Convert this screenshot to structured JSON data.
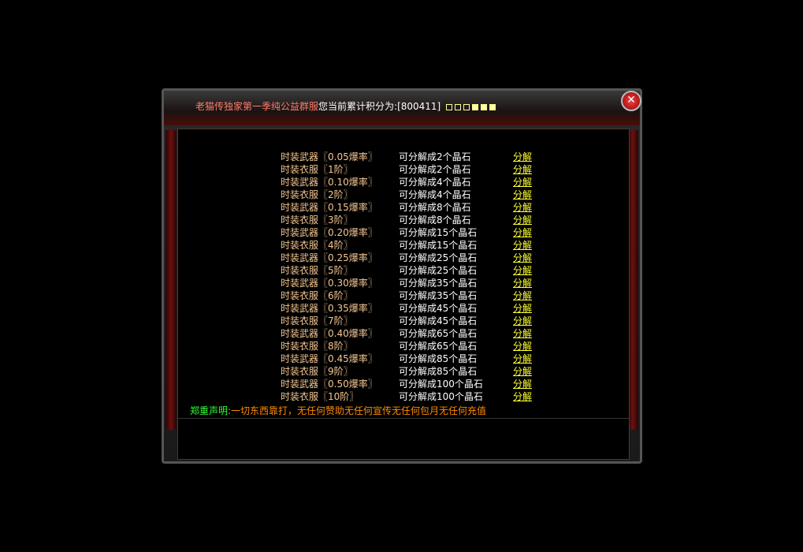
{
  "title": {
    "server_name": "老猫传独家第一季纯公益群服",
    "points_label": "您当前累计积分为:",
    "points_value": "[800411]",
    "squares": [
      false,
      false,
      false,
      true,
      true,
      true
    ]
  },
  "close_label": "✕",
  "rows": [
    {
      "item": "时装武器〖0.05爆率〗",
      "result": "可分解成2个晶石",
      "action": "分解"
    },
    {
      "item": "时装衣服〖1阶〗",
      "result": "可分解成2个晶石",
      "action": "分解"
    },
    {
      "item": "时装武器〖0.10爆率〗",
      "result": "可分解成4个晶石",
      "action": "分解"
    },
    {
      "item": "时装衣服〖2阶〗",
      "result": "可分解成4个晶石",
      "action": "分解"
    },
    {
      "item": "时装武器〖0.15爆率〗",
      "result": "可分解成8个晶石",
      "action": "分解"
    },
    {
      "item": "时装衣服〖3阶〗",
      "result": "可分解成8个晶石",
      "action": "分解"
    },
    {
      "item": "时装武器〖0.20爆率〗",
      "result": "可分解成15个晶石",
      "action": "分解"
    },
    {
      "item": "时装衣服〖4阶〗",
      "result": "可分解成15个晶石",
      "action": "分解"
    },
    {
      "item": "时装武器〖0.25爆率〗",
      "result": "可分解成25个晶石",
      "action": "分解"
    },
    {
      "item": "时装衣服〖5阶〗",
      "result": "可分解成25个晶石",
      "action": "分解"
    },
    {
      "item": "时装武器〖0.30爆率〗",
      "result": "可分解成35个晶石",
      "action": "分解"
    },
    {
      "item": "时装衣服〖6阶〗",
      "result": "可分解成35个晶石",
      "action": "分解"
    },
    {
      "item": "时装武器〖0.35爆率〗",
      "result": "可分解成45个晶石",
      "action": "分解"
    },
    {
      "item": "时装衣服〖7阶〗",
      "result": "可分解成45个晶石",
      "action": "分解"
    },
    {
      "item": "时装武器〖0.40爆率〗",
      "result": "可分解成65个晶石",
      "action": "分解"
    },
    {
      "item": "时装衣服〖8阶〗",
      "result": "可分解成65个晶石",
      "action": "分解"
    },
    {
      "item": "时装武器〖0.45爆率〗",
      "result": "可分解成85个晶石",
      "action": "分解"
    },
    {
      "item": "时装衣服〖9阶〗",
      "result": "可分解成85个晶石",
      "action": "分解"
    },
    {
      "item": "时装武器〖0.50爆率〗",
      "result": "可分解成100个晶石",
      "action": "分解"
    },
    {
      "item": "时装衣服〖10阶〗",
      "result": "可分解成100个晶石",
      "action": "分解"
    }
  ],
  "notice": {
    "label": "郑重声明:",
    "text": "一切东西靠打，无任何赞助无任何宣传无任何包月无任何充值"
  }
}
